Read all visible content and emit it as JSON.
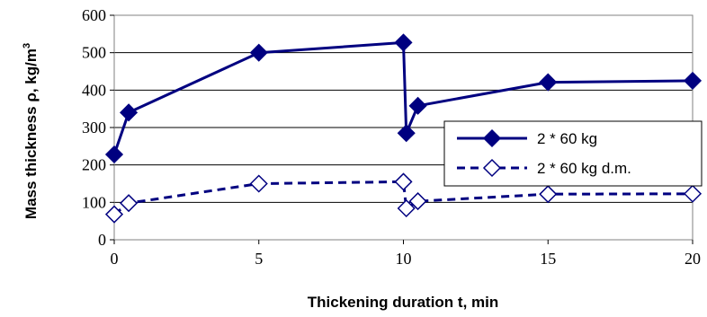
{
  "chart_data": {
    "type": "line",
    "xlabel": "Thickening duration t, min",
    "ylabel_main": "Mass thickness ρ, kg/m",
    "ylabel_sup": "3",
    "xlim": [
      0,
      20
    ],
    "ylim": [
      0,
      600
    ],
    "xticks": [
      0,
      5,
      10,
      15,
      20
    ],
    "yticks": [
      0,
      100,
      200,
      300,
      400,
      500,
      600
    ],
    "grid": "horizontal",
    "legend_position": "right",
    "series": [
      {
        "name": "2 * 60 kg",
        "color": "#000080",
        "line": "solid",
        "marker": "filled-diamond",
        "x": [
          0,
          0.5,
          5,
          10,
          10.1,
          10.5,
          15,
          20
        ],
        "y": [
          228,
          340,
          500,
          527,
          285,
          358,
          421,
          425
        ]
      },
      {
        "name": "2 * 60 kg d.m.",
        "color": "#000080",
        "line": "dashed",
        "marker": "hollow-diamond",
        "x": [
          0,
          0.5,
          5,
          10,
          10.1,
          10.5,
          15,
          20
        ],
        "y": [
          68,
          98,
          150,
          155,
          84,
          103,
          122,
          123
        ]
      }
    ]
  }
}
